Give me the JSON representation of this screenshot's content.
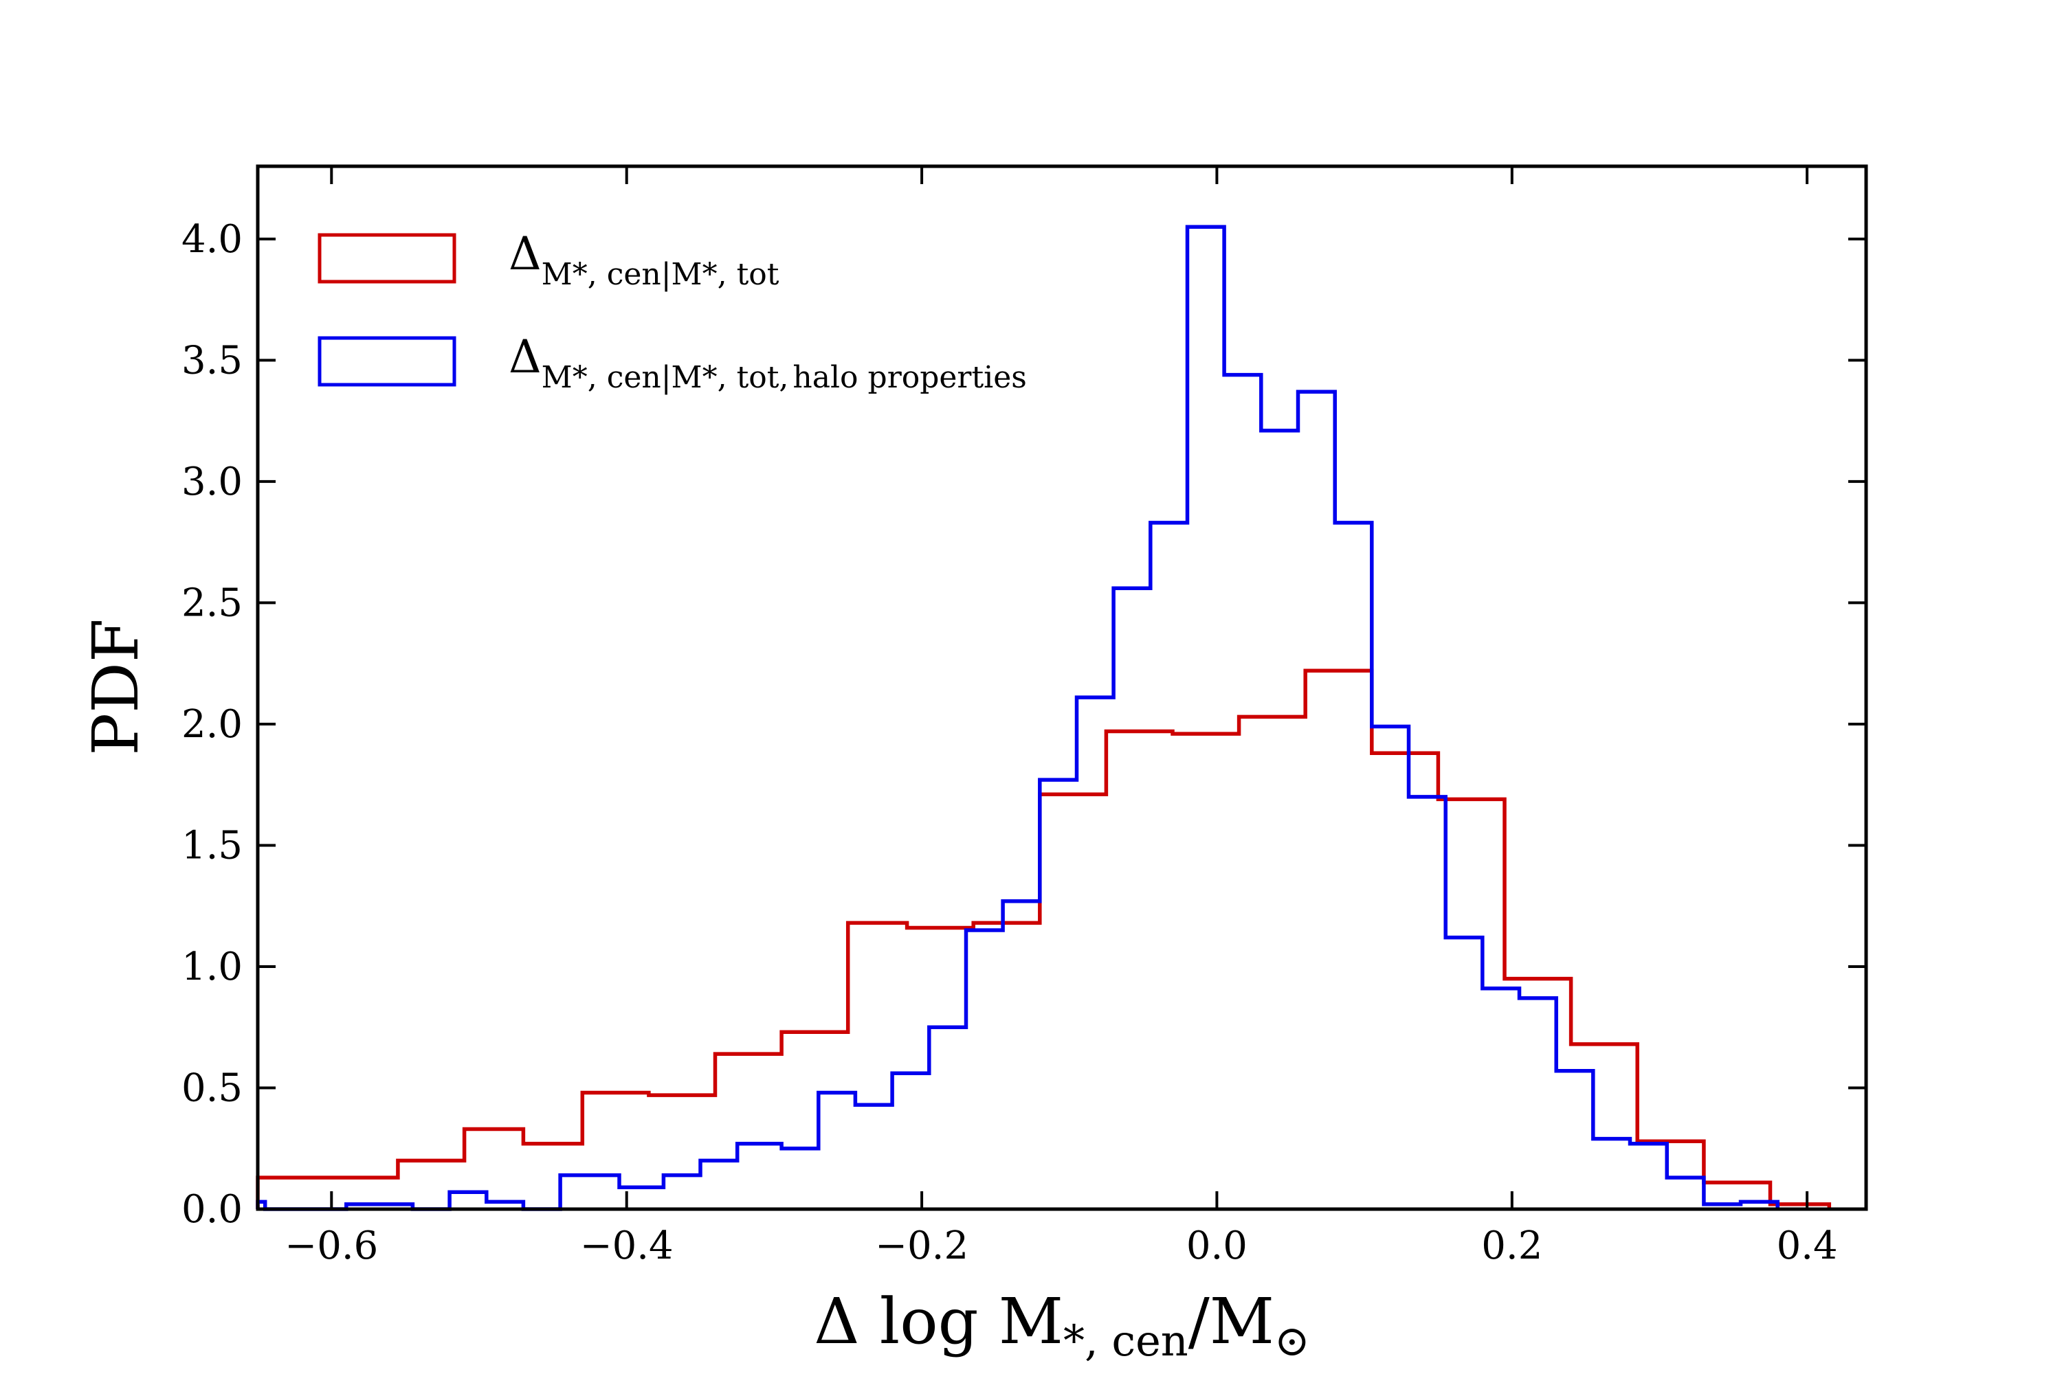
{
  "chart_data": {
    "type": "histogram",
    "title": "",
    "xlabel": "Δ log M*,cen/M⊙",
    "xlabel_parts": {
      "prefix": "Δ log M",
      "sub": "*, cen",
      "suffix": "/M",
      "sub2": "⊙"
    },
    "ylabel": "PDF",
    "xlim": [
      -0.65,
      0.44
    ],
    "ylim": [
      0.0,
      4.3
    ],
    "xticks": [
      -0.6,
      -0.4,
      -0.2,
      0.0,
      0.2,
      0.4
    ],
    "xtick_labels": [
      "−0.6",
      "−0.4",
      "−0.2",
      "0.0",
      "0.2",
      "0.4"
    ],
    "yticks": [
      0.0,
      0.5,
      1.0,
      1.5,
      2.0,
      2.5,
      3.0,
      3.5,
      4.0
    ],
    "ytick_labels": [
      "0.0",
      "0.5",
      "1.0",
      "1.5",
      "2.0",
      "2.5",
      "3.0",
      "3.5",
      "4.0"
    ],
    "legend_position": "top-left",
    "series": [
      {
        "name": "Δ M*,cen|M*,tot",
        "legend_main": "Δ",
        "legend_sub": "M*, cen|M*, tot",
        "legend_tail": "",
        "color": "#cc0000",
        "bin_edges": [
          -0.65,
          -0.555,
          -0.51,
          -0.47,
          -0.43,
          -0.385,
          -0.34,
          -0.295,
          -0.25,
          -0.21,
          -0.165,
          -0.12,
          -0.075,
          -0.03,
          0.015,
          0.06,
          0.105,
          0.15,
          0.195,
          0.24,
          0.285,
          0.33,
          0.375,
          0.415
        ],
        "values": [
          0.13,
          0.2,
          0.33,
          0.27,
          0.48,
          0.47,
          0.64,
          0.73,
          1.18,
          1.16,
          1.18,
          1.71,
          1.97,
          1.96,
          2.03,
          2.22,
          1.88,
          1.69,
          0.95,
          0.68,
          0.28,
          0.11,
          0.02
        ]
      },
      {
        "name": "Δ M*,cen|M*,tot, halo properties",
        "legend_main": "Δ",
        "legend_sub": "M*, cen|M*, tot,",
        "legend_tail": "halo properties",
        "color": "#0000ee",
        "bin_edges": [
          -0.65,
          -0.645,
          -0.59,
          -0.545,
          -0.52,
          -0.495,
          -0.47,
          -0.445,
          -0.405,
          -0.375,
          -0.35,
          -0.325,
          -0.295,
          -0.27,
          -0.245,
          -0.22,
          -0.195,
          -0.17,
          -0.145,
          -0.12,
          -0.095,
          -0.07,
          -0.045,
          -0.02,
          0.005,
          0.03,
          0.055,
          0.08,
          0.105,
          0.13,
          0.155,
          0.18,
          0.205,
          0.23,
          0.255,
          0.28,
          0.305,
          0.33,
          0.355,
          0.38
        ],
        "values": [
          0.03,
          0.0,
          0.02,
          0.0,
          0.07,
          0.03,
          0.0,
          0.14,
          0.09,
          0.14,
          0.2,
          0.27,
          0.25,
          0.48,
          0.43,
          0.56,
          0.75,
          1.15,
          1.27,
          1.77,
          2.11,
          2.56,
          2.83,
          4.05,
          3.44,
          3.21,
          3.37,
          2.83,
          1.99,
          1.7,
          1.12,
          0.91,
          0.87,
          0.57,
          0.29,
          0.27,
          0.13,
          0.02,
          0.03
        ]
      }
    ]
  }
}
